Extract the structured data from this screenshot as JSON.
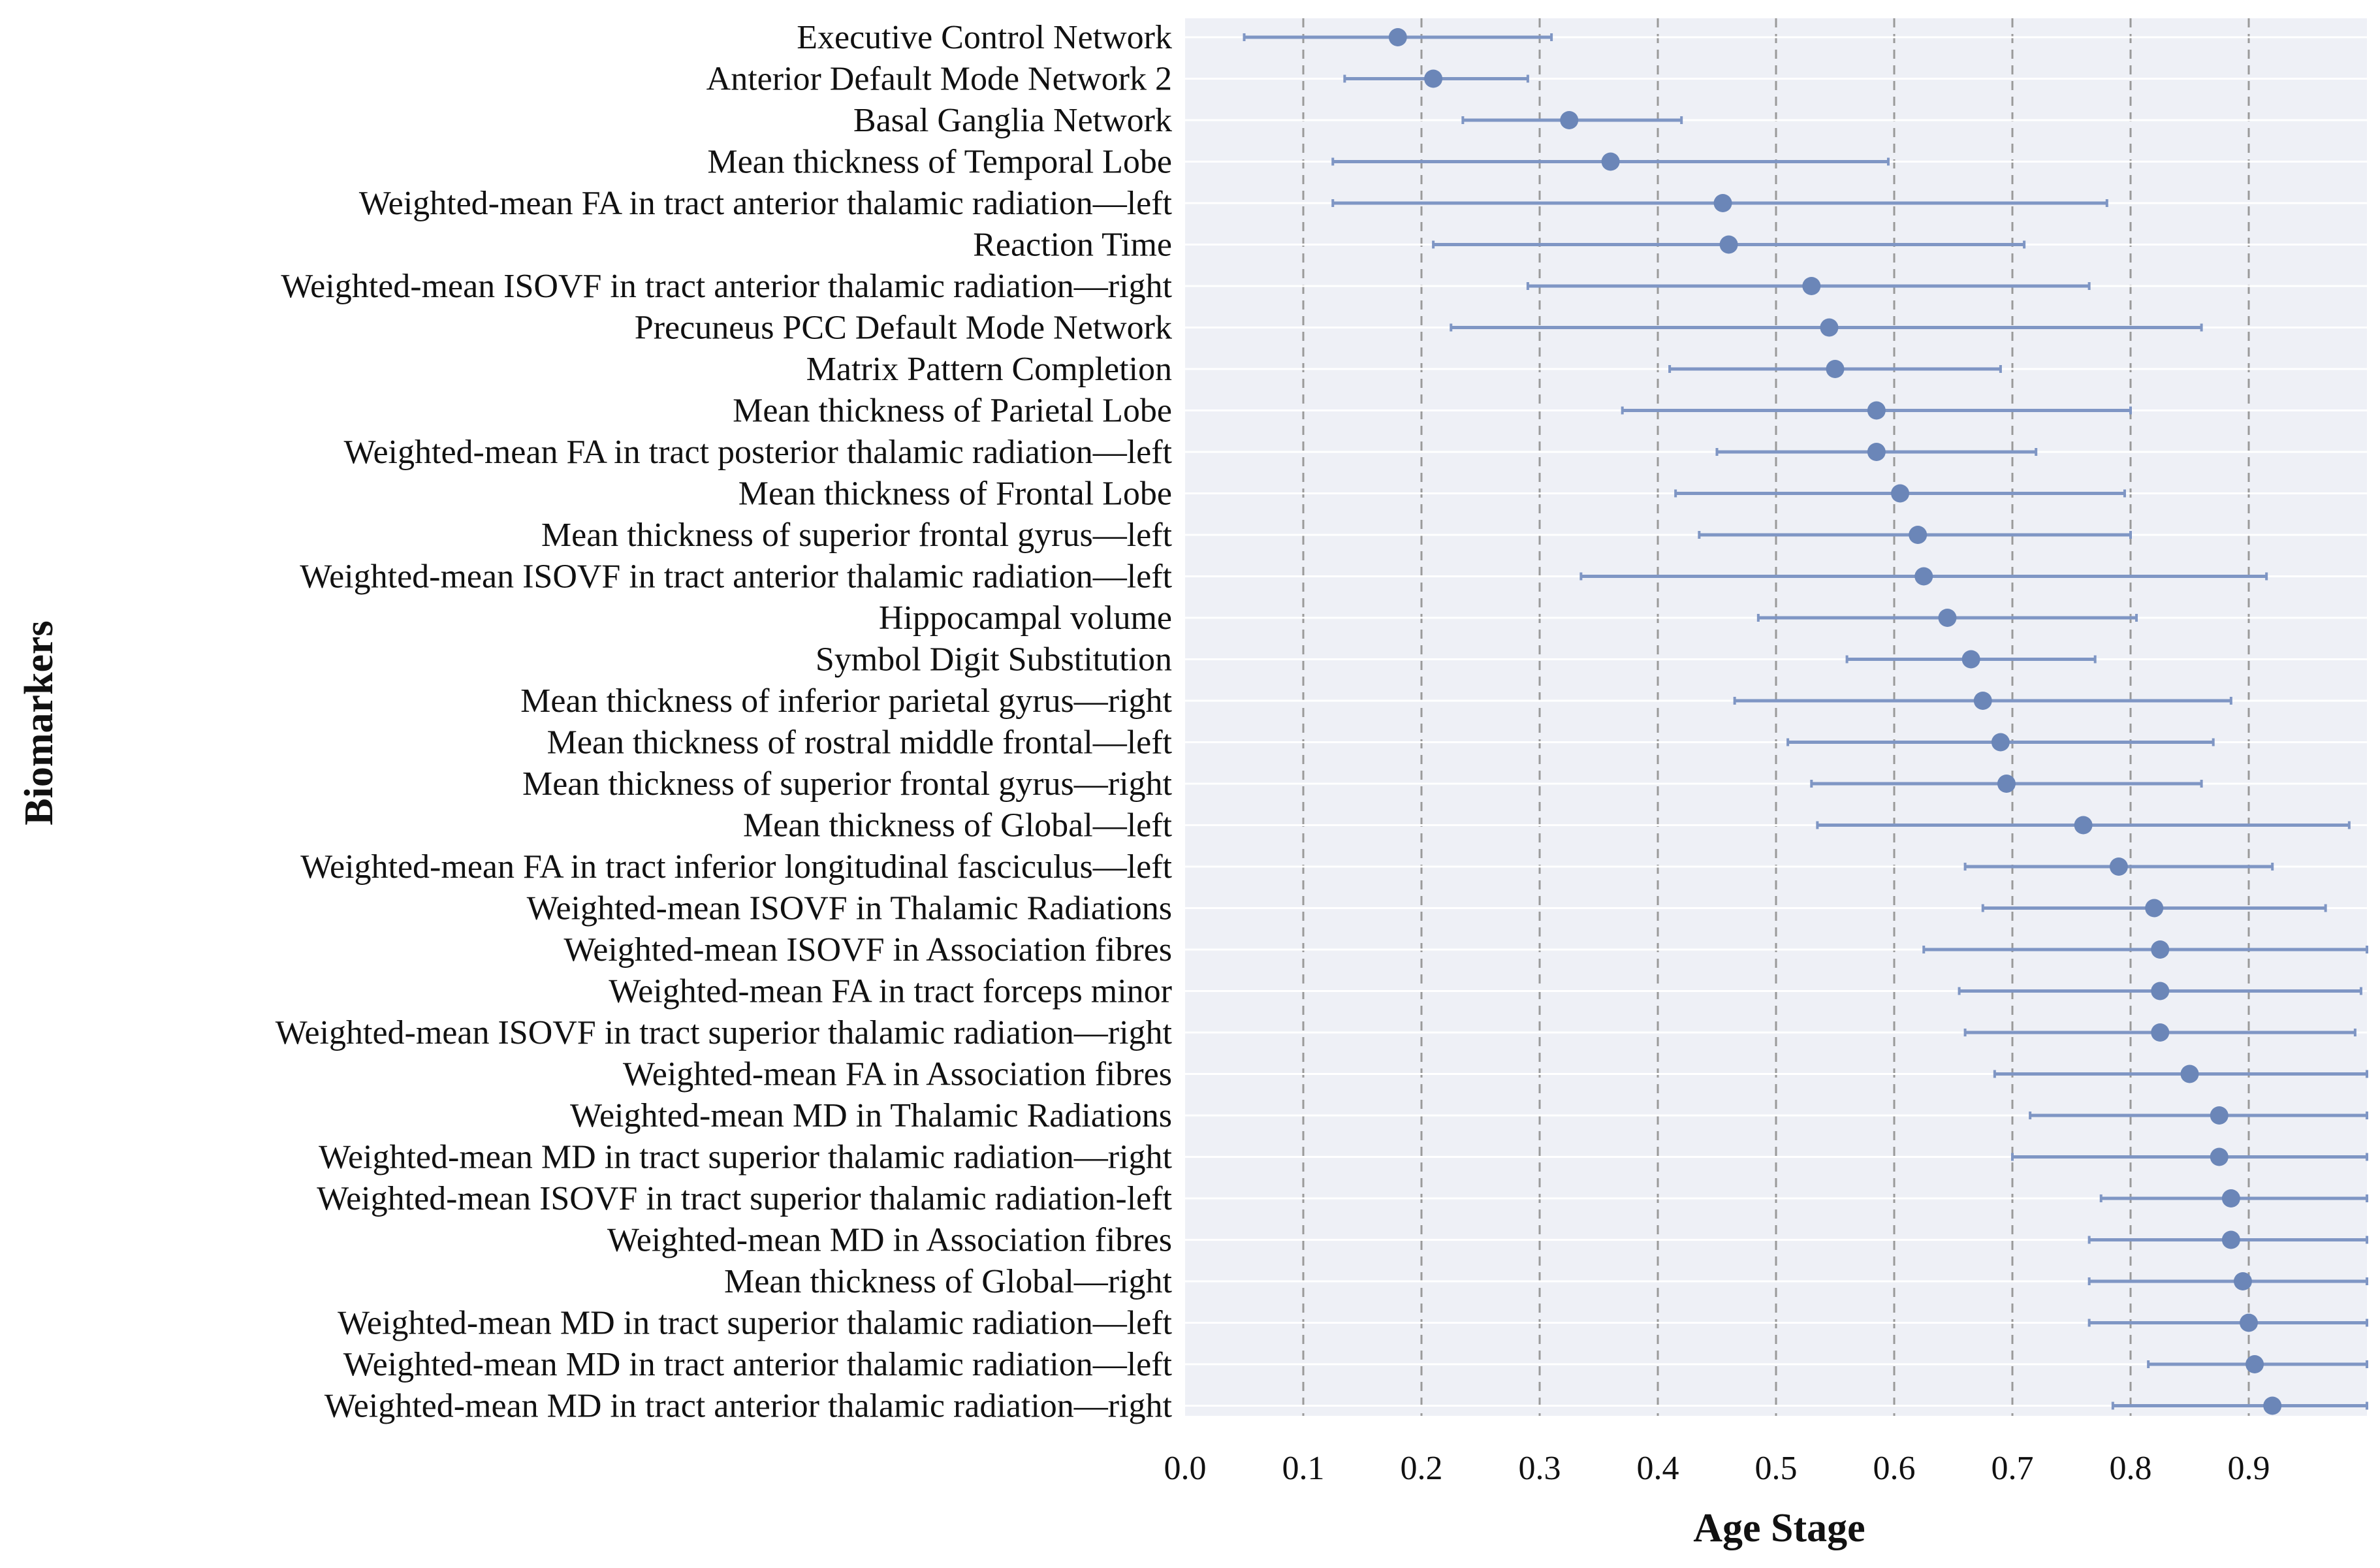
{
  "chart_data": {
    "type": "scatter",
    "subtype": "dot-with-error-bars",
    "orientation": "horizontal",
    "xlabel": "Age Stage",
    "ylabel": "Biomarkers",
    "xlim": [
      0.0,
      1.0
    ],
    "x_ticks": [
      0.0,
      0.1,
      0.2,
      0.3,
      0.4,
      0.5,
      0.6,
      0.7,
      0.8,
      0.9
    ],
    "x_tick_labels": [
      "0.0",
      "0.1",
      "0.2",
      "0.3",
      "0.4",
      "0.5",
      "0.6",
      "0.7",
      "0.8",
      "0.9"
    ],
    "grid": "vertical dashed at ticks",
    "colors": {
      "point": "#6b86b8",
      "bar": "#7f96c4",
      "plot_background": "#eef0f6",
      "grid": "#9a9a9a"
    },
    "biomarkers": [
      {
        "label": "Executive Control Network",
        "value": 0.18,
        "low": 0.05,
        "high": 0.31
      },
      {
        "label": "Anterior Default Mode Network 2",
        "value": 0.21,
        "low": 0.135,
        "high": 0.29
      },
      {
        "label": "Basal Ganglia Network",
        "value": 0.325,
        "low": 0.235,
        "high": 0.42
      },
      {
        "label": "Mean thickness of Temporal Lobe",
        "value": 0.36,
        "low": 0.125,
        "high": 0.595
      },
      {
        "label": "Weighted-mean FA in tract anterior thalamic radiation—left",
        "value": 0.455,
        "low": 0.125,
        "high": 0.78
      },
      {
        "label": "Reaction Time",
        "value": 0.46,
        "low": 0.21,
        "high": 0.71
      },
      {
        "label": "Weighted-mean ISOVF in tract anterior thalamic radiation—right",
        "value": 0.53,
        "low": 0.29,
        "high": 0.765
      },
      {
        "label": "Precuneus PCC Default Mode Network",
        "value": 0.545,
        "low": 0.225,
        "high": 0.86
      },
      {
        "label": "Matrix Pattern Completion",
        "value": 0.55,
        "low": 0.41,
        "high": 0.69
      },
      {
        "label": "Mean thickness of Parietal Lobe",
        "value": 0.585,
        "low": 0.37,
        "high": 0.8
      },
      {
        "label": "Weighted-mean FA in tract posterior thalamic radiation—left",
        "value": 0.585,
        "low": 0.45,
        "high": 0.72
      },
      {
        "label": "Mean thickness of Frontal Lobe",
        "value": 0.605,
        "low": 0.415,
        "high": 0.795
      },
      {
        "label": "Mean thickness of superior frontal gyrus—left",
        "value": 0.62,
        "low": 0.435,
        "high": 0.8
      },
      {
        "label": "Weighted-mean ISOVF in tract anterior thalamic radiation—left",
        "value": 0.625,
        "low": 0.335,
        "high": 0.915
      },
      {
        "label": "Hippocampal volume",
        "value": 0.645,
        "low": 0.485,
        "high": 0.805
      },
      {
        "label": "Symbol Digit Substitution",
        "value": 0.665,
        "low": 0.56,
        "high": 0.77
      },
      {
        "label": "Mean thickness of inferior parietal gyrus—right",
        "value": 0.675,
        "low": 0.465,
        "high": 0.885
      },
      {
        "label": "Mean thickness of rostral middle frontal—left",
        "value": 0.69,
        "low": 0.51,
        "high": 0.87
      },
      {
        "label": "Mean thickness of superior frontal gyrus—right",
        "value": 0.695,
        "low": 0.53,
        "high": 0.86
      },
      {
        "label": "Mean thickness of Global—left",
        "value": 0.76,
        "low": 0.535,
        "high": 0.985
      },
      {
        "label": "Weighted-mean FA in tract inferior longitudinal fasciculus—left",
        "value": 0.79,
        "low": 0.66,
        "high": 0.92
      },
      {
        "label": "Weighted-mean ISOVF in Thalamic Radiations",
        "value": 0.82,
        "low": 0.675,
        "high": 0.965
      },
      {
        "label": "Weighted-mean ISOVF in Association fibres",
        "value": 0.825,
        "low": 0.625,
        "high": 1.0
      },
      {
        "label": "Weighted-mean FA in tract forceps minor",
        "value": 0.825,
        "low": 0.655,
        "high": 0.995
      },
      {
        "label": "Weighted-mean ISOVF in tract superior thalamic radiation—right",
        "value": 0.825,
        "low": 0.66,
        "high": 0.99
      },
      {
        "label": "Weighted-mean FA in Association fibres",
        "value": 0.85,
        "low": 0.685,
        "high": 1.0
      },
      {
        "label": "Weighted-mean MD in Thalamic Radiations",
        "value": 0.875,
        "low": 0.715,
        "high": 1.0
      },
      {
        "label": "Weighted-mean MD in tract superior thalamic radiation—right",
        "value": 0.875,
        "low": 0.7,
        "high": 1.0
      },
      {
        "label": "Weighted-mean ISOVF in tract superior thalamic radiation-left",
        "value": 0.885,
        "low": 0.775,
        "high": 1.0
      },
      {
        "label": "Weighted-mean MD in Association fibres",
        "value": 0.885,
        "low": 0.765,
        "high": 1.0
      },
      {
        "label": "Mean thickness of Global—right",
        "value": 0.895,
        "low": 0.765,
        "high": 1.0
      },
      {
        "label": "Weighted-mean MD in tract superior thalamic radiation—left",
        "value": 0.9,
        "low": 0.765,
        "high": 1.0
      },
      {
        "label": "Weighted-mean MD in tract anterior thalamic radiation—left",
        "value": 0.905,
        "low": 0.815,
        "high": 1.0
      },
      {
        "label": "Weighted-mean MD in tract anterior thalamic radiation—right",
        "value": 0.92,
        "low": 0.785,
        "high": 1.0
      }
    ]
  }
}
